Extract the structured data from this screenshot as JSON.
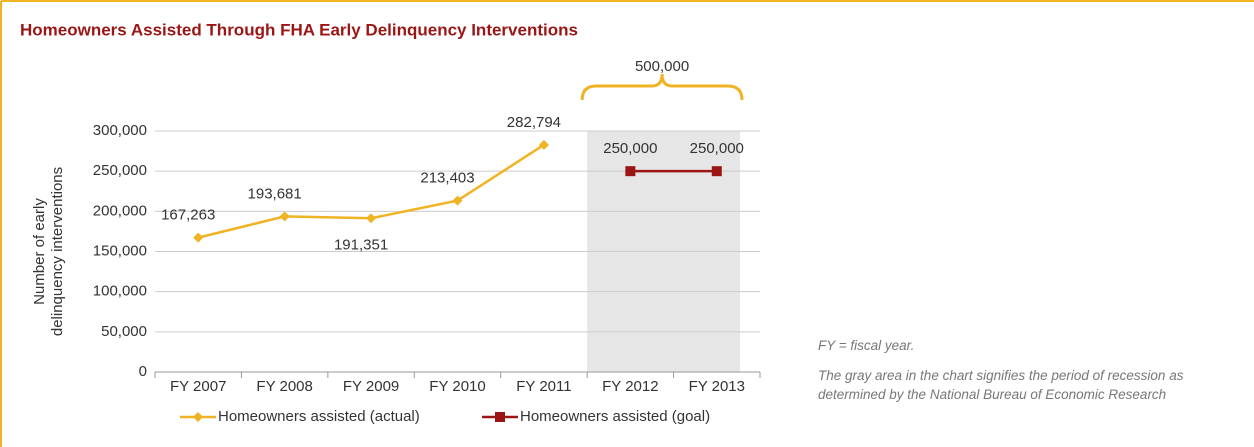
{
  "chart_data": {
    "type": "line",
    "title": "Homeowners Assisted Through FHA Early Delinquency Interventions",
    "ylabel": [
      "Number of early",
      "delinquency interventions"
    ],
    "categories": [
      "FY 2007",
      "FY 2008",
      "FY 2009",
      "FY 2010",
      "FY 2011",
      "FY 2012",
      "FY 2013"
    ],
    "series": [
      {
        "name": "Homeowners assisted (actual)",
        "color": "#f0b323",
        "marker": "diamond",
        "values": [
          167263,
          193681,
          191351,
          213403,
          282794,
          null,
          null
        ],
        "value_labels": [
          "167,263",
          "193,681",
          "191,351",
          "213,403",
          "282,794",
          null,
          null
        ]
      },
      {
        "name": "Homeowners assisted (goal)",
        "color": "#9b1515",
        "marker": "square",
        "values": [
          null,
          null,
          null,
          null,
          null,
          250000,
          250000
        ],
        "value_labels": [
          null,
          null,
          null,
          null,
          null,
          "250,000",
          "250,000"
        ]
      }
    ],
    "ylim": [
      0,
      300000
    ],
    "yticks": [
      0,
      {
        "value": 50000,
        "label": "50,000"
      },
      {
        "value": 100000,
        "label": "100,000"
      },
      {
        "value": 150000,
        "label": "150,000"
      },
      {
        "value": 200000,
        "label": "200,000"
      },
      {
        "value": 250000,
        "label": "250,000"
      },
      {
        "value": 300000,
        "label": "300,000"
      }
    ],
    "grid": true,
    "shade": [
      "FY 2012",
      "FY 2013"
    ],
    "bracket_label": "500,000",
    "legend": "bottom",
    "notes": [
      "FY = fiscal year.",
      "The gray area in the chart signifies the period of recession as determined by the National Bureau of Economic Research"
    ]
  }
}
